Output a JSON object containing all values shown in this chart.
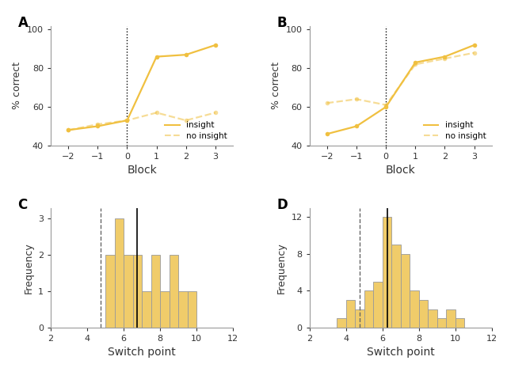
{
  "panel_A": {
    "label": "A",
    "x": [
      -2,
      -1,
      0,
      1,
      2,
      3
    ],
    "insight_y": [
      48,
      50,
      53,
      86,
      87,
      92
    ],
    "no_insight_y": [
      48,
      51,
      53,
      57,
      53,
      57
    ],
    "ylabel": "% correct",
    "xlabel": "Block",
    "ylim": [
      40,
      102
    ],
    "yticks": [
      40,
      60,
      80,
      100
    ],
    "xticks": [
      -2,
      -1,
      0,
      1,
      2,
      3
    ],
    "xlim": [
      -2.6,
      3.6
    ]
  },
  "panel_B": {
    "label": "B",
    "x": [
      -2,
      -1,
      0,
      1,
      2,
      3
    ],
    "insight_y": [
      46,
      50,
      60,
      83,
      86,
      92
    ],
    "no_insight_y": [
      62,
      64,
      61,
      82,
      85,
      88
    ],
    "ylabel": "% correct",
    "xlabel": "Block",
    "ylim": [
      40,
      102
    ],
    "yticks": [
      40,
      60,
      80,
      100
    ],
    "xticks": [
      -2,
      -1,
      0,
      1,
      2,
      3
    ],
    "xlim": [
      -2.6,
      3.6
    ]
  },
  "panel_C": {
    "label": "C",
    "bar_lefts": [
      5,
      5.5,
      6,
      6.5,
      7,
      7.5,
      8,
      8.5,
      9,
      9.5
    ],
    "bar_width": 0.5,
    "counts": [
      2,
      3,
      2,
      2,
      1,
      2,
      1,
      2,
      1,
      1
    ],
    "dashed_line_x": 4.75,
    "solid_line_x": 6.75,
    "ylabel": "Frequency",
    "xlabel": "Switch point",
    "xlim": [
      2,
      12
    ],
    "ylim": [
      0,
      3.3
    ],
    "yticks": [
      0,
      1,
      2,
      3
    ],
    "xticks": [
      2,
      4,
      6,
      8,
      10,
      12
    ]
  },
  "panel_D": {
    "label": "D",
    "bar_lefts": [
      3.5,
      4,
      4.5,
      5,
      5.5,
      6,
      6.5,
      7,
      7.5,
      8,
      8.5,
      9,
      9.5,
      10,
      10.5
    ],
    "bar_width": 0.5,
    "counts": [
      1,
      3,
      2,
      4,
      5,
      12,
      9,
      8,
      4,
      3,
      2,
      1,
      2,
      1,
      0
    ],
    "dashed_line_x": 4.75,
    "solid_line_x": 6.25,
    "ylabel": "Frequency",
    "xlabel": "Switch point",
    "xlim": [
      2,
      12
    ],
    "ylim": [
      0,
      13
    ],
    "yticks": [
      0,
      4,
      8,
      12
    ],
    "xticks": [
      2,
      4,
      6,
      8,
      10,
      12
    ]
  },
  "insight_color": "#F0C040",
  "no_insight_color": "#F0C040",
  "bar_color": "#F0CC6A",
  "bar_edge_color": "#999999"
}
